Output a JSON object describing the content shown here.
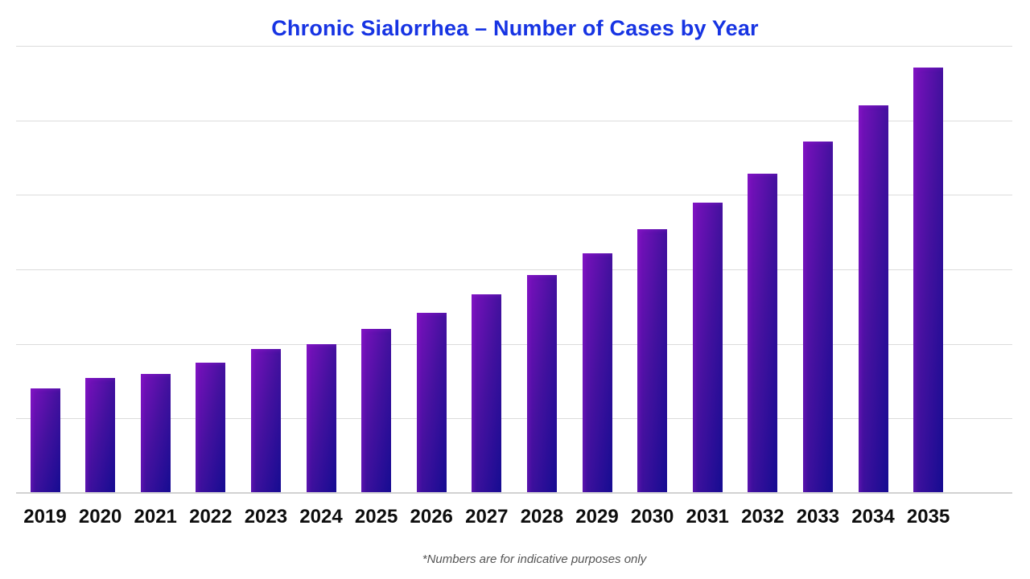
{
  "chart": {
    "title": "Chronic Sialorrhea – Number of Cases by Year",
    "footnote": "*Numbers are for indicative purposes only",
    "colors": {
      "background": "#ffffff",
      "title": "#1734e3",
      "axis_label": "#0d0d0d",
      "footnote": "#555555",
      "gridline": "#dcdcdc",
      "baseline": "#d2d2d2",
      "bar_gradient_start": "#7b11bd",
      "bar_gradient_mid": "#45119f",
      "bar_gradient_end": "#150c91"
    }
  },
  "chart_data": {
    "type": "bar",
    "title": "Chronic Sialorrhea – Number of Cases by Year",
    "categories": [
      "2019",
      "2020",
      "2021",
      "2022",
      "2023",
      "2024",
      "2025",
      "2026",
      "2027",
      "2028",
      "2029",
      "2030",
      "2031",
      "2032",
      "2033",
      "2034",
      "2035"
    ],
    "values": [
      23.2,
      25.5,
      26.4,
      29.0,
      32.0,
      33.1,
      36.5,
      40.1,
      44.2,
      48.6,
      53.4,
      58.8,
      64.7,
      71.2,
      78.4,
      86.5,
      95.0
    ],
    "value_unit": "relative scale 0-100 (y-axis unlabeled in source; numbers indicative only)",
    "xlabel": "",
    "ylabel": "",
    "ylim": [
      0,
      100
    ],
    "grid": true,
    "gridline_count": 7,
    "legend": false,
    "annotation": "*Numbers are for indicative purposes only"
  }
}
